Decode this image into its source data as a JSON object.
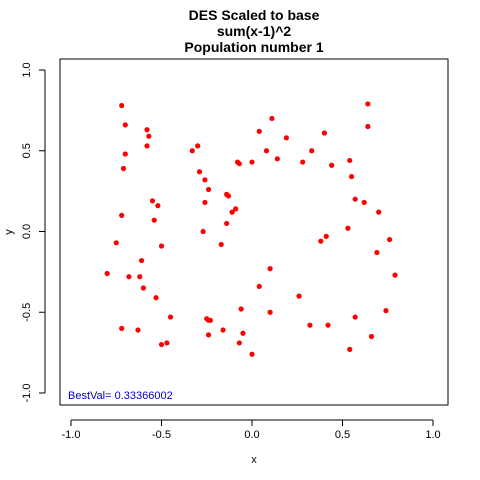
{
  "chart_data": {
    "type": "scatter",
    "title_lines": [
      "DES Scaled to base",
      "sum(x-1)^2",
      "Population number 1"
    ],
    "xlabel": "x",
    "ylabel": "y",
    "xlim": [
      -1.0,
      1.0
    ],
    "ylim": [
      -1.0,
      1.0
    ],
    "xticks": [
      -1.0,
      -0.5,
      0.0,
      0.5,
      1.0
    ],
    "yticks": [
      -1.0,
      -0.5,
      0.0,
      0.5,
      1.0
    ],
    "xtick_labels": [
      "-1.0",
      "-0.5",
      "0.0",
      "0.5",
      "1.0"
    ],
    "ytick_labels": [
      "-1.0",
      "-0.5",
      "0.0",
      "0.5",
      "1.0"
    ],
    "grid": false,
    "point_color": "#ff0000",
    "annotation": {
      "text": "BestVal= 0.33366002",
      "color": "#0000cc",
      "position": "bottom-left"
    },
    "points": [
      [
        -0.72,
        0.78
      ],
      [
        -0.7,
        0.66
      ],
      [
        -0.58,
        0.63
      ],
      [
        -0.57,
        0.59
      ],
      [
        -0.58,
        0.53
      ],
      [
        -0.7,
        0.48
      ],
      [
        -0.71,
        0.39
      ],
      [
        -0.55,
        0.19
      ],
      [
        -0.52,
        0.16
      ],
      [
        -0.54,
        0.07
      ],
      [
        -0.72,
        0.1
      ],
      [
        -0.75,
        -0.07
      ],
      [
        -0.5,
        -0.09
      ],
      [
        -0.61,
        -0.18
      ],
      [
        -0.68,
        -0.28
      ],
      [
        -0.62,
        -0.28
      ],
      [
        -0.8,
        -0.26
      ],
      [
        -0.6,
        -0.35
      ],
      [
        -0.53,
        -0.41
      ],
      [
        -0.45,
        -0.53
      ],
      [
        -0.72,
        -0.6
      ],
      [
        -0.63,
        -0.61
      ],
      [
        -0.47,
        -0.69
      ],
      [
        -0.5,
        -0.7
      ],
      [
        -0.33,
        0.5
      ],
      [
        -0.3,
        0.53
      ],
      [
        -0.29,
        0.37
      ],
      [
        -0.26,
        0.32
      ],
      [
        -0.26,
        0.18
      ],
      [
        -0.24,
        0.26
      ],
      [
        -0.14,
        0.23
      ],
      [
        -0.13,
        0.22
      ],
      [
        -0.11,
        0.12
      ],
      [
        -0.09,
        0.14
      ],
      [
        -0.14,
        0.05
      ],
      [
        -0.27,
        0.0
      ],
      [
        -0.17,
        -0.08
      ],
      [
        -0.08,
        0.43
      ],
      [
        -0.07,
        0.42
      ],
      [
        0.0,
        0.43
      ],
      [
        0.04,
        0.62
      ],
      [
        0.11,
        0.7
      ],
      [
        0.08,
        0.5
      ],
      [
        0.14,
        0.45
      ],
      [
        0.19,
        0.58
      ],
      [
        0.28,
        0.43
      ],
      [
        0.33,
        0.5
      ],
      [
        0.4,
        0.61
      ],
      [
        0.44,
        0.41
      ],
      [
        0.54,
        0.44
      ],
      [
        0.55,
        0.34
      ],
      [
        0.64,
        0.79
      ],
      [
        0.64,
        0.65
      ],
      [
        0.57,
        0.2
      ],
      [
        0.62,
        0.18
      ],
      [
        0.7,
        0.12
      ],
      [
        0.53,
        0.02
      ],
      [
        0.41,
        -0.03
      ],
      [
        0.38,
        -0.06
      ],
      [
        0.76,
        -0.05
      ],
      [
        0.69,
        -0.13
      ],
      [
        0.79,
        -0.27
      ],
      [
        0.1,
        -0.23
      ],
      [
        0.04,
        -0.34
      ],
      [
        -0.06,
        -0.48
      ],
      [
        0.1,
        -0.5
      ],
      [
        0.26,
        -0.4
      ],
      [
        0.32,
        -0.58
      ],
      [
        0.42,
        -0.58
      ],
      [
        0.57,
        -0.53
      ],
      [
        0.74,
        -0.49
      ],
      [
        0.66,
        -0.65
      ],
      [
        0.54,
        -0.73
      ],
      [
        -0.24,
        -0.55
      ],
      [
        -0.25,
        -0.54
      ],
      [
        -0.23,
        -0.55
      ],
      [
        -0.16,
        -0.61
      ],
      [
        -0.24,
        -0.64
      ],
      [
        -0.05,
        -0.63
      ],
      [
        -0.07,
        -0.69
      ],
      [
        0.0,
        -0.76
      ]
    ]
  }
}
